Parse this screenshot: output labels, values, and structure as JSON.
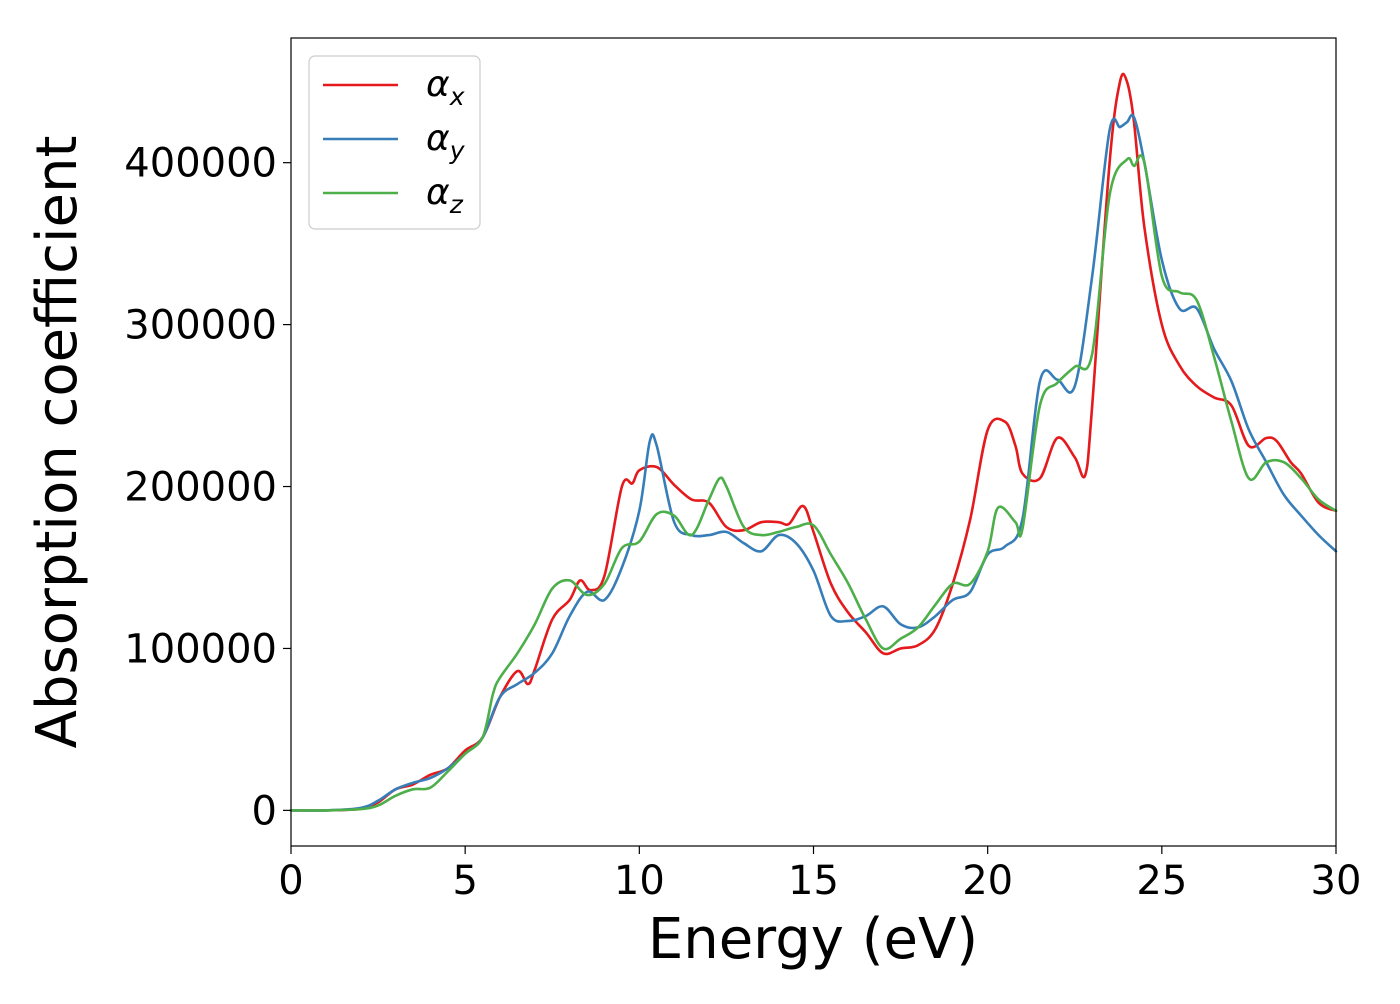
{
  "chart_data": {
    "type": "line",
    "title": "",
    "xlabel": "Energy (eV)",
    "ylabel": "Absorption coefficient",
    "xlim": [
      0,
      30
    ],
    "ylim": [
      -22000,
      477000
    ],
    "xticks": [
      0,
      5,
      10,
      15,
      20,
      25,
      30
    ],
    "yticks": [
      0,
      100000,
      200000,
      300000,
      400000
    ],
    "grid": false,
    "legend_position": "top-left",
    "series": [
      {
        "name": "α",
        "subscript": "x",
        "color": "#e41a1c",
        "x": [
          0,
          1,
          2,
          2.5,
          3,
          3.5,
          4,
          4.5,
          5,
          5.5,
          6,
          6.5,
          6.8,
          7,
          7.5,
          8,
          8.3,
          8.6,
          9,
          9.5,
          9.8,
          10,
          10.5,
          11,
          11.5,
          12,
          12.5,
          13,
          13.5,
          14,
          14.3,
          14.7,
          15,
          15.5,
          16,
          16.5,
          17,
          17.5,
          18,
          18.5,
          19,
          19.5,
          20,
          20.5,
          20.8,
          21,
          21.5,
          22,
          22.5,
          22.8,
          23,
          23.5,
          23.8,
          24,
          24.2,
          24.5,
          25,
          25.5,
          26,
          26.5,
          27,
          27.5,
          28,
          28.3,
          28.7,
          29,
          29.5,
          30
        ],
        "y": [
          0,
          0,
          1000,
          5000,
          13000,
          16000,
          22000,
          26000,
          37000,
          45000,
          70000,
          86000,
          78000,
          87000,
          118000,
          130000,
          142000,
          136000,
          145000,
          200000,
          202000,
          210000,
          212000,
          201000,
          192000,
          190000,
          175000,
          173000,
          178000,
          178000,
          177000,
          188000,
          172000,
          140000,
          122000,
          110000,
          97000,
          100000,
          102000,
          112000,
          140000,
          180000,
          235000,
          240000,
          225000,
          208000,
          205000,
          230000,
          218000,
          207000,
          250000,
          400000,
          450000,
          450000,
          425000,
          360000,
          300000,
          275000,
          262000,
          255000,
          250000,
          225000,
          230000,
          228000,
          215000,
          208000,
          190000,
          185000
        ]
      },
      {
        "name": "α",
        "subscript": "y",
        "color": "#377eb8",
        "x": [
          0,
          1,
          2,
          2.5,
          3,
          3.5,
          4,
          4.5,
          5,
          5.5,
          6,
          6.5,
          7,
          7.5,
          8,
          8.5,
          9,
          9.5,
          10,
          10.3,
          10.5,
          11,
          11.5,
          12,
          12.5,
          13,
          13.5,
          14,
          14.5,
          15,
          15.5,
          16,
          16.5,
          17,
          17.5,
          18,
          18.5,
          19,
          19.5,
          20,
          20.5,
          21,
          21.5,
          22,
          22.5,
          23,
          23.5,
          23.8,
          24,
          24.2,
          24.5,
          25,
          25.5,
          26,
          26.5,
          27,
          27.5,
          28,
          28.5,
          29,
          29.5,
          30
        ],
        "y": [
          0,
          0,
          1500,
          6000,
          13000,
          17000,
          20000,
          26000,
          35000,
          45000,
          70000,
          78000,
          85000,
          97000,
          120000,
          135000,
          130000,
          150000,
          185000,
          228000,
          225000,
          178000,
          170000,
          170000,
          172000,
          165000,
          160000,
          170000,
          165000,
          148000,
          120000,
          117000,
          120000,
          126000,
          115000,
          113000,
          120000,
          130000,
          135000,
          158000,
          163000,
          180000,
          265000,
          266000,
          262000,
          330000,
          420000,
          422000,
          425000,
          428000,
          400000,
          340000,
          310000,
          310000,
          285000,
          265000,
          235000,
          215000,
          195000,
          182000,
          170000,
          160000
        ]
      },
      {
        "name": "α",
        "subscript": "z",
        "color": "#4daf4a",
        "x": [
          0,
          1,
          2,
          2.5,
          3,
          3.5,
          4,
          4.5,
          5,
          5.5,
          5.8,
          6,
          6.5,
          7,
          7.5,
          8,
          8.5,
          9,
          9.5,
          10,
          10.5,
          11,
          11.5,
          12,
          12.3,
          12.5,
          13,
          13.5,
          14,
          14.5,
          15,
          15.5,
          16,
          16.5,
          17,
          17.5,
          18,
          18.5,
          19,
          19.5,
          20,
          20.3,
          20.8,
          21,
          21.5,
          22,
          22.5,
          23,
          23.5,
          24,
          24.2,
          24.5,
          25,
          25.5,
          26,
          26.5,
          27,
          27.5,
          28,
          28.5,
          29,
          29.5,
          30
        ],
        "y": [
          0,
          0,
          800,
          3000,
          9000,
          13000,
          14000,
          24000,
          35000,
          45000,
          72000,
          82000,
          97000,
          115000,
          137000,
          142000,
          133000,
          140000,
          162000,
          166000,
          183000,
          182000,
          170000,
          192000,
          205000,
          200000,
          175000,
          170000,
          172000,
          175000,
          176000,
          158000,
          140000,
          118000,
          100000,
          106000,
          113000,
          127000,
          140000,
          140000,
          160000,
          187000,
          178000,
          174000,
          250000,
          264000,
          274000,
          282000,
          380000,
          402000,
          398000,
          400000,
          330000,
          320000,
          315000,
          280000,
          240000,
          205000,
          215000,
          215000,
          205000,
          192000,
          185000
        ]
      }
    ]
  }
}
